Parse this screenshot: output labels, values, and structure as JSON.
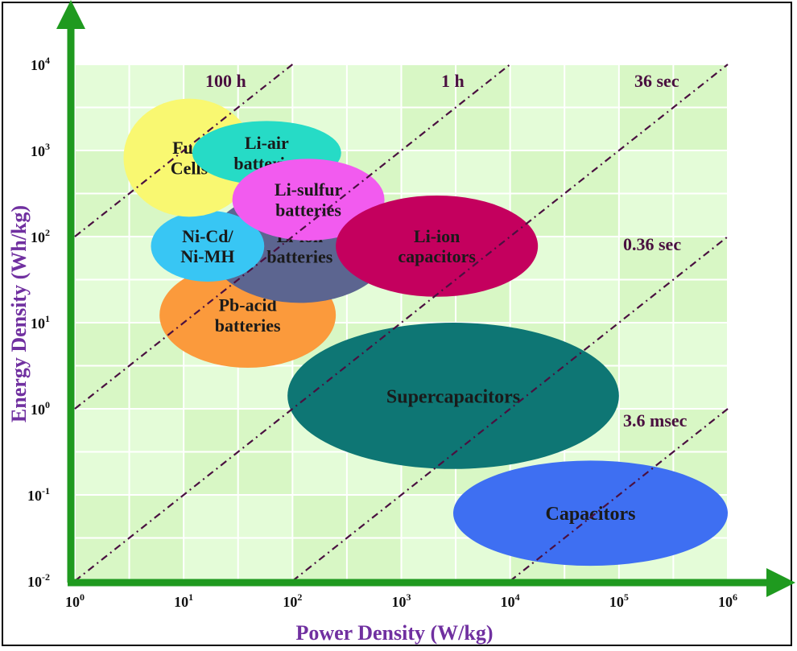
{
  "chart_data": {
    "type": "scatter",
    "title": "",
    "xlabel": "Power Density (W/kg)",
    "ylabel": "Energy Density (Wh/kg)",
    "xscale": "log",
    "yscale": "log",
    "xlim": [
      1,
      1000000
    ],
    "ylim": [
      0.01,
      10000
    ],
    "grid": true,
    "x_ticks": [
      {
        "base": "10",
        "exp": "0",
        "value": 1
      },
      {
        "base": "10",
        "exp": "1",
        "value": 10
      },
      {
        "base": "10",
        "exp": "2",
        "value": 100
      },
      {
        "base": "10",
        "exp": "3",
        "value": 1000
      },
      {
        "base": "10",
        "exp": "4",
        "value": 10000
      },
      {
        "base": "10",
        "exp": "5",
        "value": 100000
      },
      {
        "base": "10",
        "exp": "6",
        "value": 1000000
      }
    ],
    "y_ticks": [
      {
        "base": "10",
        "exp": "-2",
        "value": 0.01
      },
      {
        "base": "10",
        "exp": "-1",
        "value": 0.1
      },
      {
        "base": "10",
        "exp": "0",
        "value": 1
      },
      {
        "base": "10",
        "exp": "1",
        "value": 10
      },
      {
        "base": "10",
        "exp": "2",
        "value": 100
      },
      {
        "base": "10",
        "exp": "3",
        "value": 1000
      },
      {
        "base": "10",
        "exp": "4",
        "value": 10000
      }
    ],
    "time_lines": [
      {
        "label": "100 h",
        "hours": 100
      },
      {
        "label": "1 h",
        "hours": 1
      },
      {
        "label": "36 sec",
        "hours": 0.01
      },
      {
        "label": "0.36 sec",
        "hours": 0.0001
      },
      {
        "label": "3.6 msec",
        "hours": 1e-06
      }
    ],
    "regions": [
      {
        "name": "Pb-acid batteries",
        "lines": [
          "Pb-acid",
          "batteries"
        ],
        "color": "#fb9a3c",
        "x_range": [
          6,
          250
        ],
        "y_range": [
          3,
          50
        ],
        "text_color": "#1a1a1a"
      },
      {
        "name": "Li-ion batteries",
        "lines": [
          "Li-ion",
          "batteries"
        ],
        "color": "#5c6590",
        "x_range": [
          17,
          800
        ],
        "y_range": [
          17,
          350
        ],
        "text_color": "#1a1a1a"
      },
      {
        "name": "Ni-Cd/Ni-MH",
        "lines": [
          "Ni-Cd/",
          "Ni-MH"
        ],
        "color": "#38c6f4",
        "x_range": [
          5,
          55
        ],
        "y_range": [
          30,
          200
        ],
        "text_color": "#1a1a1a"
      },
      {
        "name": "Fuel Cells",
        "lines": [
          "Fuel",
          "Cells"
        ],
        "color": "#f9f871",
        "x_range": [
          2.8,
          45
        ],
        "y_range": [
          170,
          4000
        ],
        "text_color": "#1a1a1a"
      },
      {
        "name": "Li-air batteries",
        "lines": [
          "Li-air",
          "batteries"
        ],
        "color": "#26dbc6",
        "x_range": [
          12,
          280
        ],
        "y_range": [
          400,
          2200
        ],
        "text_color": "#1a1a1a"
      },
      {
        "name": "Li-sulfur batteries",
        "lines": [
          "Li-sulfur",
          "batteries"
        ],
        "color": "#f25bef",
        "x_range": [
          28,
          700
        ],
        "y_range": [
          90,
          800
        ],
        "text_color": "#1a1a1a"
      },
      {
        "name": "Li-ion capacitors",
        "lines": [
          "Li-ion",
          "capacitors"
        ],
        "color": "#c4005e",
        "x_range": [
          250,
          18000
        ],
        "y_range": [
          20,
          300
        ],
        "text_color": "#1a1a1a"
      },
      {
        "name": "Supercapacitors",
        "lines": [
          "Supercapacitors"
        ],
        "color": "#0e7674",
        "x_range": [
          90,
          100000
        ],
        "y_range": [
          0.2,
          10
        ],
        "text_color": "#1a1a1a"
      },
      {
        "name": "Capacitors",
        "lines": [
          "Capacitors"
        ],
        "color": "#3e6ff2",
        "x_range": [
          3000,
          1000000
        ],
        "y_range": [
          0.015,
          0.25
        ],
        "text_color": "#1a1a1a"
      }
    ]
  },
  "colors": {
    "axis_arrow": "#1f9a1f",
    "axis_label": "#7030a0",
    "time_line": "#4a1040",
    "plot_bg": "#d8f7c5",
    "plot_bg_alt": "#eafde0",
    "grid": "#ffffff"
  }
}
